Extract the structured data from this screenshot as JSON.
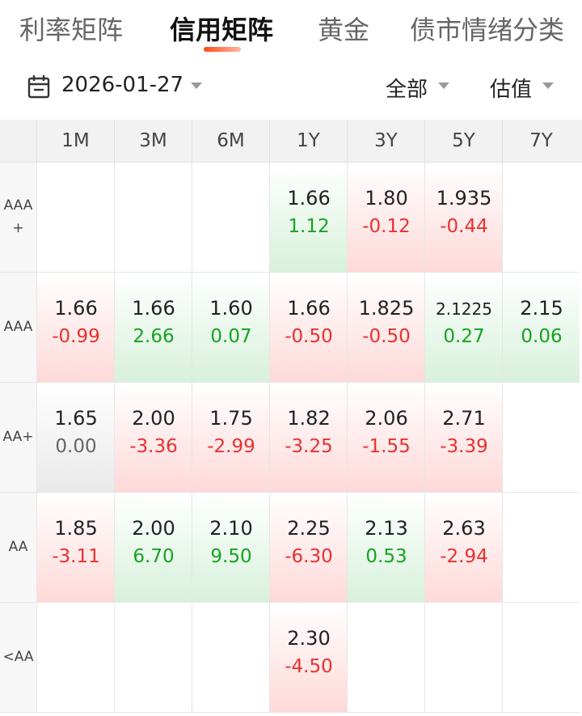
{
  "tabs": [
    "利率矩阵",
    "信用矩阵",
    "黄金",
    "债市情绪",
    "分类"
  ],
  "active_tab": 1,
  "filter": {
    "date": "2026-01-27",
    "scope": "全部",
    "metric": "估值"
  },
  "columns": [
    "1M",
    "3M",
    "6M",
    "1Y",
    "3Y",
    "5Y",
    "7Y"
  ],
  "rows": [
    {
      "label_lines": [
        "AAA",
        "+"
      ],
      "cells": [
        null,
        null,
        null,
        {
          "value": "1.66",
          "change": "1.12",
          "trend": "up"
        },
        {
          "value": "1.80",
          "change": "-0.12",
          "trend": "down"
        },
        {
          "value": "1.935",
          "change": "-0.44",
          "trend": "down"
        },
        null
      ]
    },
    {
      "label_lines": [
        "AAA"
      ],
      "cells": [
        {
          "value": "1.66",
          "change": "-0.99",
          "trend": "down"
        },
        {
          "value": "1.66",
          "change": "2.66",
          "trend": "up"
        },
        {
          "value": "1.60",
          "change": "0.07",
          "trend": "up"
        },
        {
          "value": "1.66",
          "change": "-0.50",
          "trend": "down"
        },
        {
          "value": "1.825",
          "change": "-0.50",
          "trend": "down"
        },
        {
          "value": "2.1225",
          "change": "0.27",
          "trend": "up"
        },
        {
          "value": "2.15",
          "change": "0.06",
          "trend": "up"
        }
      ]
    },
    {
      "label_lines": [
        "AA+"
      ],
      "cells": [
        {
          "value": "1.65",
          "change": "0.00",
          "trend": "flat"
        },
        {
          "value": "2.00",
          "change": "-3.36",
          "trend": "down"
        },
        {
          "value": "1.75",
          "change": "-2.99",
          "trend": "down"
        },
        {
          "value": "1.82",
          "change": "-3.25",
          "trend": "down"
        },
        {
          "value": "2.06",
          "change": "-1.55",
          "trend": "down"
        },
        {
          "value": "2.71",
          "change": "-3.39",
          "trend": "down"
        },
        null
      ]
    },
    {
      "label_lines": [
        "AA"
      ],
      "cells": [
        {
          "value": "1.85",
          "change": "-3.11",
          "trend": "down"
        },
        {
          "value": "2.00",
          "change": "6.70",
          "trend": "up"
        },
        {
          "value": "2.10",
          "change": "9.50",
          "trend": "up"
        },
        {
          "value": "2.25",
          "change": "-6.30",
          "trend": "down"
        },
        {
          "value": "2.13",
          "change": "0.53",
          "trend": "up"
        },
        {
          "value": "2.63",
          "change": "-2.94",
          "trend": "down"
        },
        null
      ]
    },
    {
      "label_lines": [
        "<AA"
      ],
      "cells": [
        null,
        null,
        null,
        {
          "value": "2.30",
          "change": "-4.50",
          "trend": "down"
        },
        null,
        null,
        null
      ]
    }
  ],
  "colors": {
    "up": "#16a321",
    "down": "#e8312f",
    "flat": "#666666",
    "tab_indicator": "#ff4a1a"
  }
}
